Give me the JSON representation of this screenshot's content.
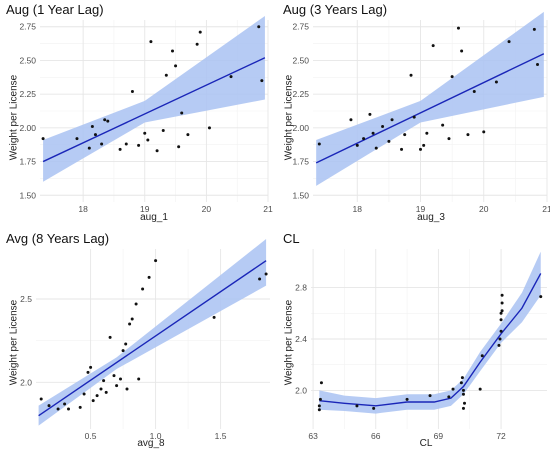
{
  "colors": {
    "grid_major": "#e6e6e6",
    "grid_minor": "#f2f2f2",
    "ribbon": "#a9c2f2",
    "line": "#1a26b8",
    "point": "#111111",
    "tick_text": "#4d4d4d"
  },
  "chart_data": [
    {
      "type": "scatter",
      "title": "Aug (1 Year Lag)",
      "xlabel": "aug_1",
      "ylabel": "Weight per License",
      "xlim": [
        17.3,
        21.0
      ],
      "ylim": [
        1.45,
        2.8
      ],
      "xticks": [
        18,
        19,
        20,
        21
      ],
      "yticks": [
        1.5,
        1.75,
        2.0,
        2.25,
        2.5,
        2.75
      ],
      "ytick_labels": [
        "1.50",
        "1.75",
        "2.00",
        "2.25",
        "2.50",
        "2.75"
      ],
      "xtick_labels": [
        "18",
        "19",
        "20",
        "21"
      ],
      "points": [
        [
          17.35,
          1.92
        ],
        [
          17.9,
          1.92
        ],
        [
          18.1,
          1.85
        ],
        [
          18.15,
          2.01
        ],
        [
          18.2,
          1.95
        ],
        [
          18.3,
          1.88
        ],
        [
          18.35,
          2.06
        ],
        [
          18.4,
          2.05
        ],
        [
          18.6,
          1.84
        ],
        [
          18.7,
          1.88
        ],
        [
          18.8,
          2.27
        ],
        [
          18.9,
          1.87
        ],
        [
          19.0,
          1.96
        ],
        [
          19.05,
          1.91
        ],
        [
          19.1,
          2.64
        ],
        [
          19.2,
          1.83
        ],
        [
          19.3,
          1.98
        ],
        [
          19.35,
          2.39
        ],
        [
          19.45,
          2.57
        ],
        [
          19.5,
          2.46
        ],
        [
          19.55,
          1.86
        ],
        [
          19.6,
          2.11
        ],
        [
          19.7,
          1.95
        ],
        [
          19.85,
          2.62
        ],
        [
          19.9,
          2.71
        ],
        [
          20.05,
          2.0
        ],
        [
          20.4,
          2.38
        ],
        [
          20.85,
          2.75
        ],
        [
          20.9,
          2.35
        ]
      ],
      "fit": {
        "x0": 17.35,
        "x1": 20.95,
        "y0": 1.75,
        "y1": 2.52
      },
      "band": [
        [
          17.35,
          1.6,
          1.91
        ],
        [
          19.0,
          2.04,
          2.2
        ],
        [
          20.95,
          2.21,
          2.83
        ]
      ]
    },
    {
      "type": "scatter",
      "title": "Aug (3 Years Lag)",
      "xlabel": "aug_3",
      "ylabel": "Weight per License",
      "xlim": [
        17.3,
        21.0
      ],
      "ylim": [
        1.45,
        2.8
      ],
      "xticks": [
        18,
        19,
        20,
        21
      ],
      "yticks": [
        1.5,
        1.75,
        2.0,
        2.25,
        2.5,
        2.75
      ],
      "ytick_labels": [
        "1.50",
        "1.75",
        "2.00",
        "2.25",
        "2.50",
        "2.75"
      ],
      "xtick_labels": [
        "18",
        "19",
        "20",
        "21"
      ],
      "points": [
        [
          17.4,
          1.88
        ],
        [
          17.9,
          2.06
        ],
        [
          18.0,
          1.87
        ],
        [
          18.1,
          1.92
        ],
        [
          18.2,
          2.1
        ],
        [
          18.25,
          1.96
        ],
        [
          18.3,
          1.85
        ],
        [
          18.4,
          2.01
        ],
        [
          18.5,
          1.9
        ],
        [
          18.55,
          2.06
        ],
        [
          18.7,
          1.84
        ],
        [
          18.75,
          1.95
        ],
        [
          18.85,
          2.39
        ],
        [
          18.9,
          2.08
        ],
        [
          19.0,
          1.84
        ],
        [
          19.05,
          1.87
        ],
        [
          19.1,
          1.96
        ],
        [
          19.2,
          2.61
        ],
        [
          19.35,
          2.02
        ],
        [
          19.45,
          1.92
        ],
        [
          19.5,
          2.38
        ],
        [
          19.6,
          2.74
        ],
        [
          19.65,
          2.57
        ],
        [
          19.75,
          1.95
        ],
        [
          19.85,
          2.27
        ],
        [
          20.0,
          1.97
        ],
        [
          20.2,
          2.34
        ],
        [
          20.4,
          2.64
        ],
        [
          20.8,
          2.73
        ],
        [
          20.85,
          2.47
        ]
      ],
      "fit": {
        "x0": 17.35,
        "x1": 20.95,
        "y0": 1.74,
        "y1": 2.55
      },
      "band": [
        [
          17.35,
          1.57,
          1.91
        ],
        [
          19.0,
          2.04,
          2.2
        ],
        [
          20.95,
          2.23,
          2.86
        ]
      ]
    },
    {
      "type": "scatter",
      "title": "Avg (8 Years Lag)",
      "xlabel": "avg_8",
      "ylabel": "Weight per License",
      "xlim": [
        0.08,
        1.88
      ],
      "ylim": [
        1.72,
        2.8
      ],
      "xticks": [
        0.5,
        1.0,
        1.5
      ],
      "yticks": [
        2.0,
        2.5
      ],
      "ytick_labels": [
        "2.0",
        "2.5"
      ],
      "xtick_labels": [
        "0.5",
        "1.0",
        "1.5"
      ],
      "points": [
        [
          0.12,
          1.9
        ],
        [
          0.18,
          1.86
        ],
        [
          0.25,
          1.84
        ],
        [
          0.3,
          1.87
        ],
        [
          0.33,
          1.84
        ],
        [
          0.42,
          1.85
        ],
        [
          0.45,
          1.93
        ],
        [
          0.48,
          2.06
        ],
        [
          0.5,
          2.09
        ],
        [
          0.52,
          1.89
        ],
        [
          0.55,
          1.92
        ],
        [
          0.58,
          1.96
        ],
        [
          0.6,
          2.01
        ],
        [
          0.62,
          1.94
        ],
        [
          0.65,
          2.27
        ],
        [
          0.68,
          2.04
        ],
        [
          0.7,
          1.98
        ],
        [
          0.73,
          2.02
        ],
        [
          0.75,
          2.19
        ],
        [
          0.77,
          2.23
        ],
        [
          0.78,
          1.96
        ],
        [
          0.8,
          2.35
        ],
        [
          0.82,
          2.38
        ],
        [
          0.85,
          2.47
        ],
        [
          0.87,
          2.02
        ],
        [
          0.9,
          2.56
        ],
        [
          0.95,
          2.63
        ],
        [
          1.0,
          2.73
        ],
        [
          1.45,
          2.39
        ],
        [
          1.8,
          2.62
        ],
        [
          1.85,
          2.65
        ]
      ],
      "fit": {
        "x0": 0.1,
        "x1": 1.85,
        "y0": 1.8,
        "y1": 2.73
      },
      "band": [
        [
          0.1,
          1.74,
          1.86
        ],
        [
          0.7,
          2.08,
          2.15
        ],
        [
          1.85,
          2.58,
          2.86
        ]
      ]
    },
    {
      "type": "scatter",
      "title": "CL",
      "xlabel": "CL",
      "ylabel": "Weight per License",
      "xlim": [
        62.9,
        74.2
      ],
      "ylim": [
        1.7,
        3.1
      ],
      "xticks": [
        63,
        66,
        69,
        72
      ],
      "yticks": [
        2.0,
        2.4,
        2.8
      ],
      "ytick_labels": [
        "2.0",
        "2.4",
        "2.8"
      ],
      "xtick_labels": [
        "63",
        "66",
        "69",
        "72"
      ],
      "points": [
        [
          63.3,
          1.85
        ],
        [
          63.3,
          1.88
        ],
        [
          63.35,
          1.93
        ],
        [
          63.4,
          2.06
        ],
        [
          65.1,
          1.88
        ],
        [
          65.9,
          1.86
        ],
        [
          67.5,
          1.93
        ],
        [
          68.6,
          1.96
        ],
        [
          69.5,
          1.95
        ],
        [
          69.7,
          2.01
        ],
        [
          70.1,
          2.06
        ],
        [
          70.15,
          2.1
        ],
        [
          70.2,
          1.97
        ],
        [
          70.2,
          2.0
        ],
        [
          70.25,
          1.9
        ],
        [
          70.2,
          1.86
        ],
        [
          71.0,
          2.01
        ],
        [
          71.1,
          2.27
        ],
        [
          71.9,
          2.35
        ],
        [
          71.95,
          2.4
        ],
        [
          72.0,
          2.46
        ],
        [
          72.0,
          2.55
        ],
        [
          72.0,
          2.6
        ],
        [
          72.05,
          2.62
        ],
        [
          72.05,
          2.68
        ],
        [
          72.05,
          2.74
        ],
        [
          73.9,
          2.73
        ]
      ],
      "smooth": [
        [
          63.3,
          1.92
        ],
        [
          64.5,
          1.9
        ],
        [
          66.0,
          1.88
        ],
        [
          67.5,
          1.91
        ],
        [
          68.8,
          1.91
        ],
        [
          69.6,
          1.94
        ],
        [
          70.2,
          2.03
        ],
        [
          71.0,
          2.22
        ],
        [
          72.0,
          2.44
        ],
        [
          73.0,
          2.64
        ],
        [
          73.9,
          2.91
        ]
      ],
      "smooth_band": [
        [
          63.3,
          1.85,
          2.0
        ],
        [
          64.5,
          1.84,
          1.96
        ],
        [
          66.0,
          1.82,
          1.94
        ],
        [
          67.5,
          1.85,
          1.97
        ],
        [
          68.8,
          1.85,
          1.97
        ],
        [
          69.6,
          1.88,
          2.0
        ],
        [
          70.2,
          1.97,
          2.09
        ],
        [
          71.0,
          2.15,
          2.3
        ],
        [
          72.0,
          2.37,
          2.52
        ],
        [
          73.0,
          2.53,
          2.76
        ],
        [
          73.9,
          2.74,
          3.08
        ]
      ]
    }
  ]
}
